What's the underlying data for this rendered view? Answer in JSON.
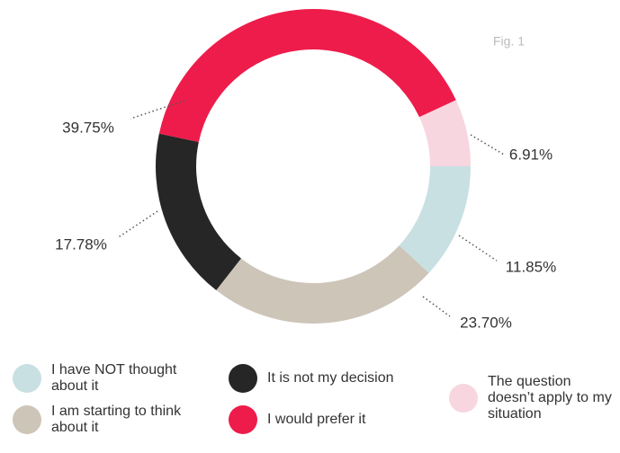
{
  "chart_data": {
    "type": "pie",
    "annotation": "Fig. 1",
    "categories": [
      "I have NOT thought about it",
      "I am starting to think about it",
      "It is not my decision",
      "I would prefer it",
      "The question doesn’t apply to my situation"
    ],
    "values": [
      11.85,
      23.7,
      17.78,
      39.75,
      6.91
    ],
    "value_labels": [
      "11.85%",
      "23.70%",
      "17.78%",
      "39.75%",
      "6.91%"
    ],
    "colors": [
      "#c9e0e3",
      "#cdc5b8",
      "#262626",
      "#ee1c4b",
      "#f7d6df"
    ]
  }
}
